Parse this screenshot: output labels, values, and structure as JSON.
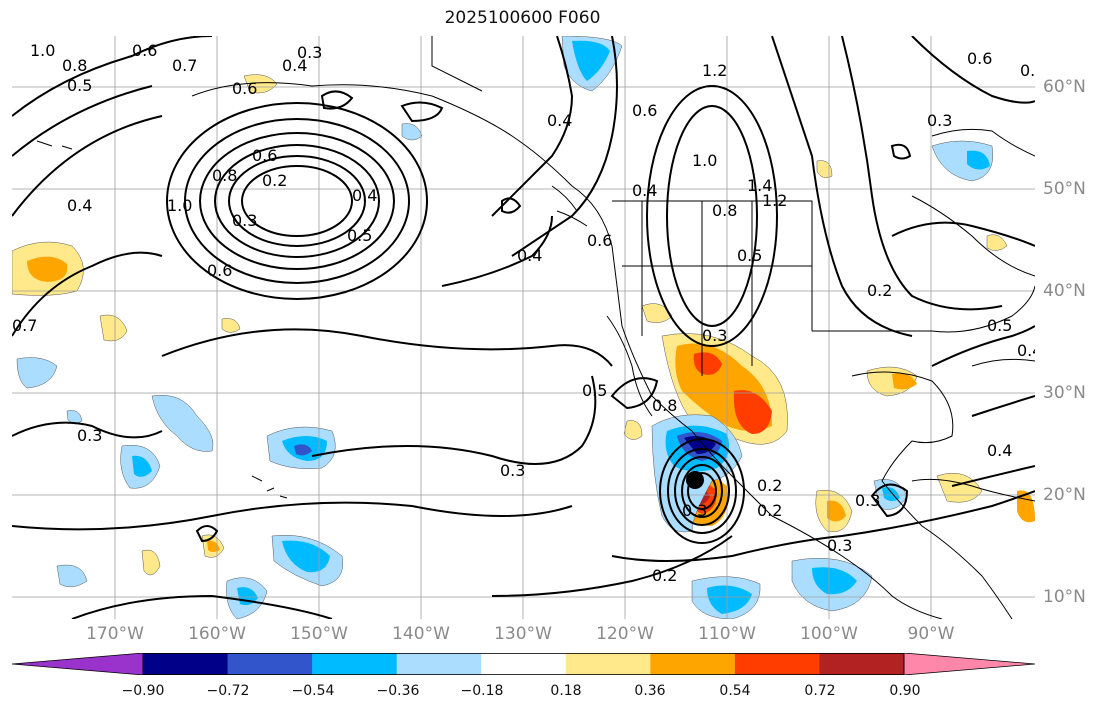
{
  "title": "2025100600 F060",
  "longitude_labels": [
    "170°W",
    "160°W",
    "150°W",
    "140°W",
    "130°W",
    "120°W",
    "110°W",
    "100°W",
    "90°W"
  ],
  "latitude_labels": [
    "60°N",
    "50°N",
    "40°N",
    "30°N",
    "20°N",
    "10°N"
  ],
  "contour_labels": [
    "1.0",
    "0.8",
    "0.6",
    "0.5",
    "0.7",
    "0.3",
    "0.4",
    "0.6",
    "0.6",
    "0.5",
    "0.4",
    "0.6",
    "1.2",
    "0.3",
    "0.8",
    "0.6",
    "0.2",
    "1.0",
    "0.5",
    "0.4",
    "0.3",
    "0.4",
    "0.6",
    "1.0",
    "0.8",
    "0.5",
    "1.4",
    "1.2",
    "0.6",
    "0.4",
    "0.2",
    "0.4",
    "0.3",
    "0.7",
    "0.3",
    "0.5",
    "0.3",
    "0.4",
    "0.3",
    "0.2",
    "0.8",
    "0.2",
    "0.3",
    "0.3",
    "0.2",
    "0.5",
    "0.4"
  ],
  "colorbar": {
    "colors": [
      "#9933cc",
      "#000088",
      "#3355cc",
      "#00bbff",
      "#aaddff",
      "#ffffff",
      "#ffe98a",
      "#ffa500",
      "#ff3d00",
      "#b22222",
      "#ff88aa"
    ],
    "tick_labels": [
      "−0.90",
      "−0.72",
      "−0.54",
      "−0.36",
      "−0.18",
      "0.18",
      "0.36",
      "0.54",
      "0.72",
      "0.90"
    ]
  },
  "storm_marker": "black-dot"
}
